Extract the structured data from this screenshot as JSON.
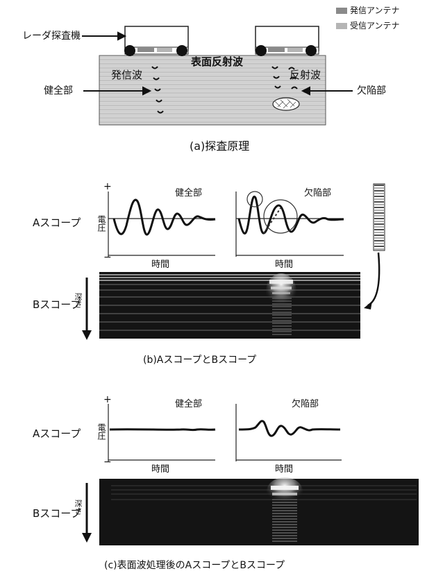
{
  "legend": {
    "transmit": "発信アンテナ",
    "receive": "受信アンテナ"
  },
  "section_a": {
    "radar_label": "レーダ探査機",
    "surface_wave": "表面反射波",
    "emitted_wave": "発信波",
    "reflected_wave": "反射波",
    "healthy_part": "健全部",
    "defect_part": "欠陥部",
    "caption": "(a)探査原理"
  },
  "section_b": {
    "ascope_label": "Aスコープ",
    "bscope_label": "Bスコープ",
    "healthy_part": "健全部",
    "defect_part": "欠陥部",
    "voltage": "電圧",
    "time": "時間",
    "depth": "深さ",
    "plus": "+",
    "minus": "−",
    "caption": "(b)AスコープとBスコープ"
  },
  "section_c": {
    "ascope_label": "Aスコープ",
    "bscope_label": "Bスコープ",
    "healthy_part": "健全部",
    "defect_part": "欠陥部",
    "voltage": "電圧",
    "time": "時間",
    "depth": "深さ",
    "plus": "+",
    "minus": "−",
    "caption": "(c)表面波処理後のAスコープとBスコープ"
  },
  "colors": {
    "ground": "#d4d4d4",
    "transmit_antenna": "#8a8a8a",
    "receive_antenna": "#b5b5b5",
    "bscope_bg": "#141414"
  }
}
